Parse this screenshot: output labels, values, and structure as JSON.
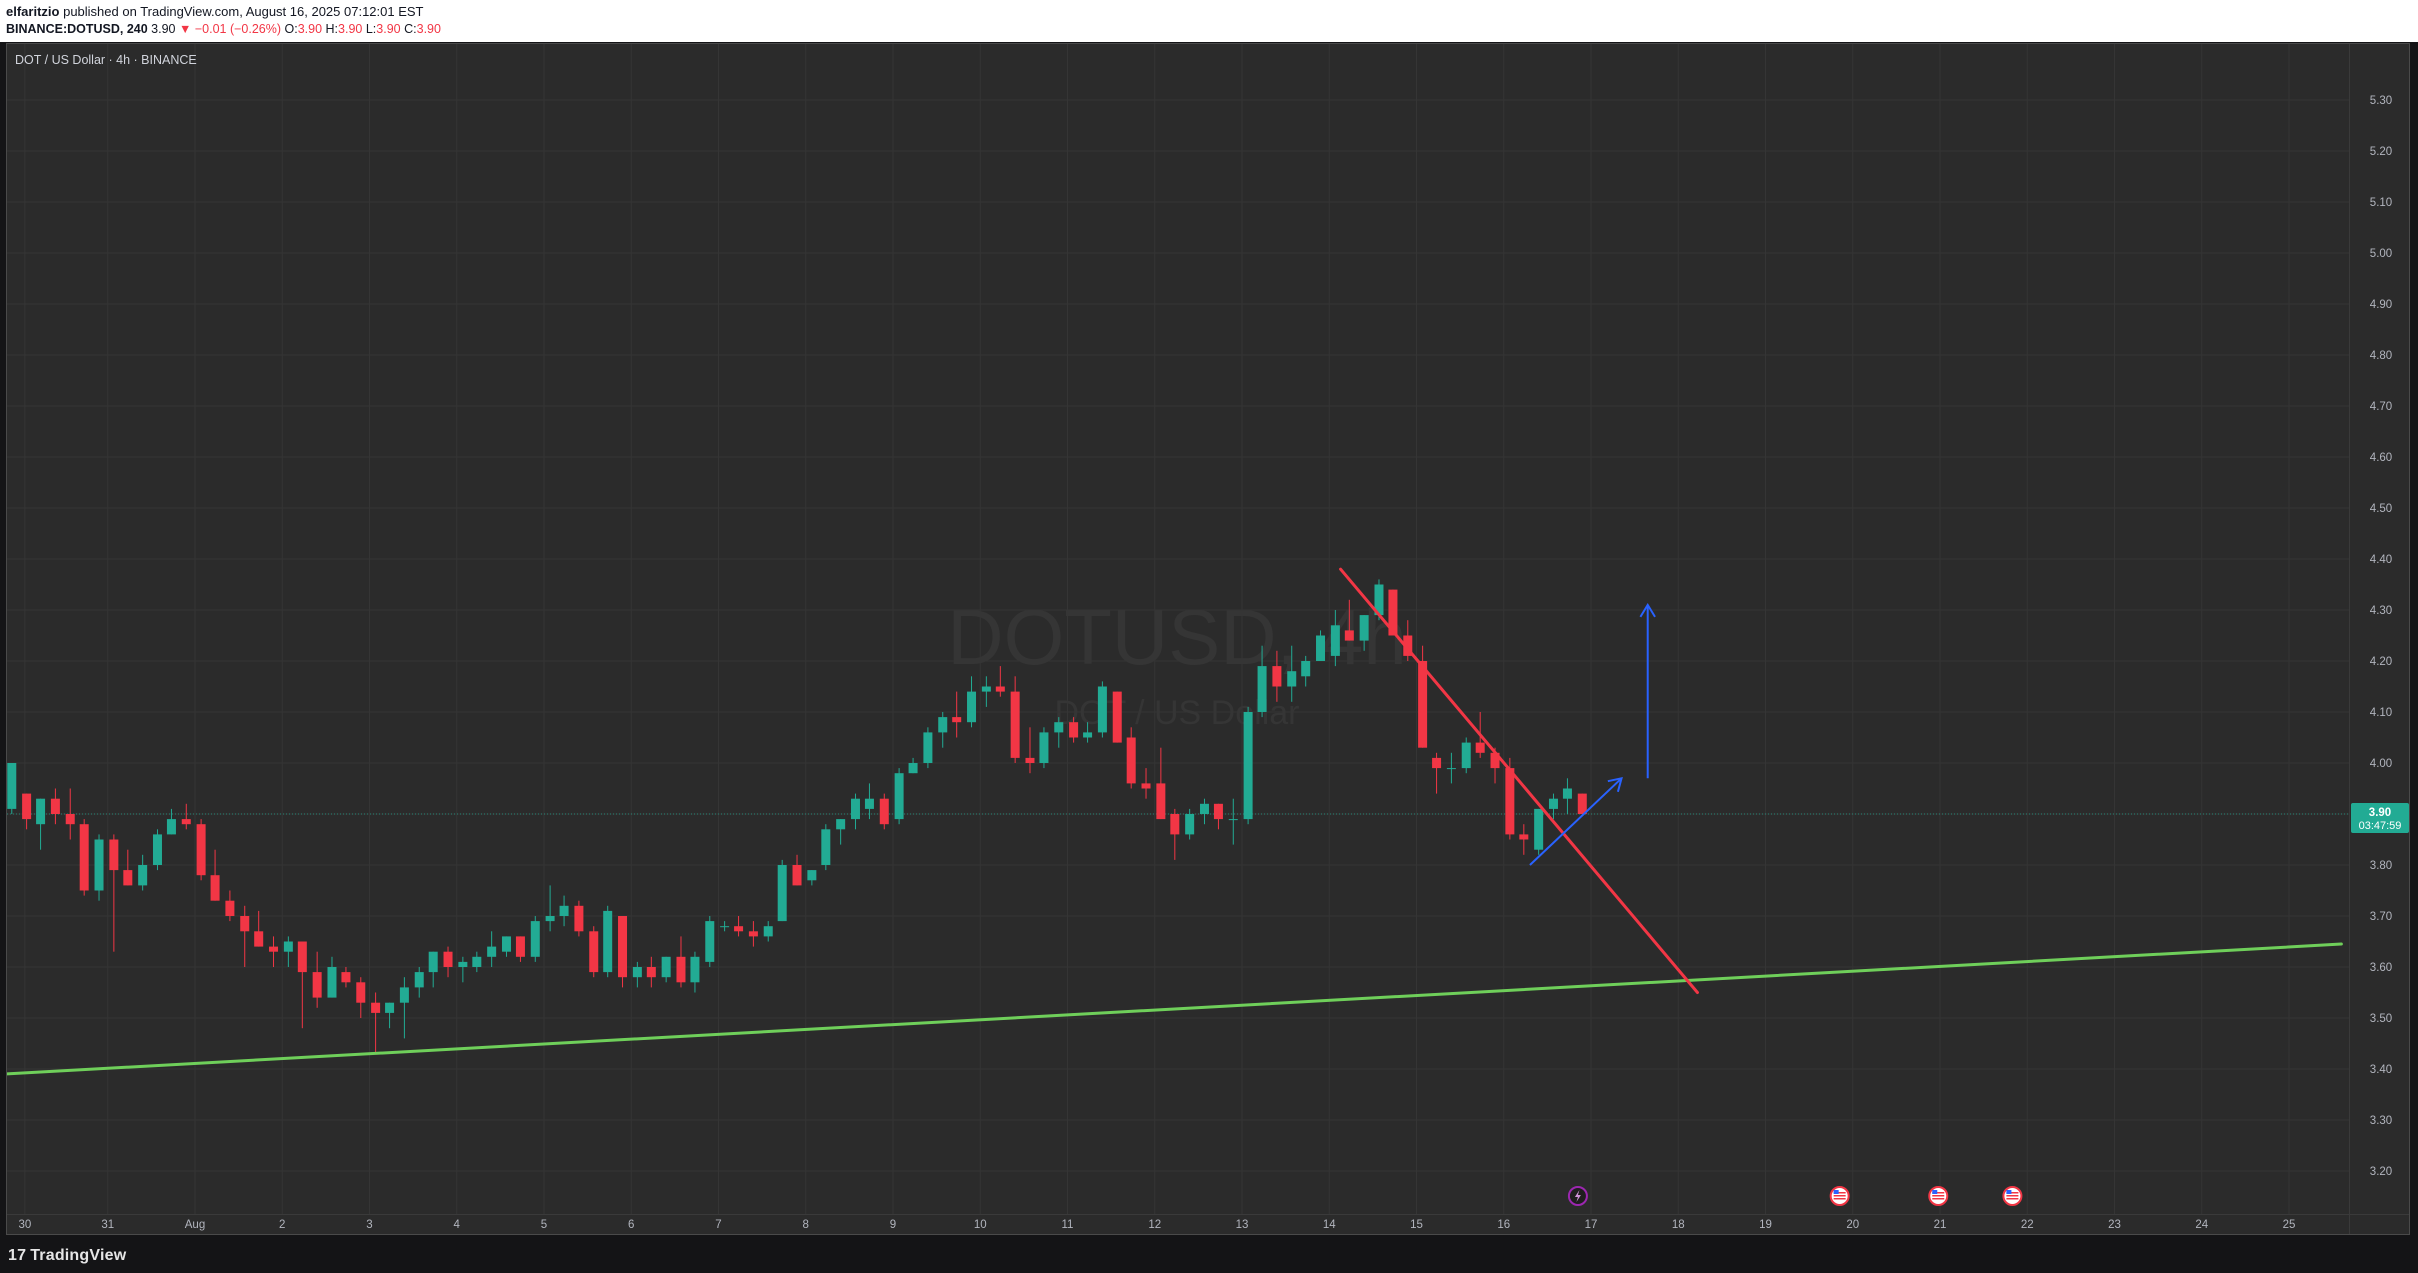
{
  "header": {
    "author": "elfaritzio",
    "published_text": "published on TradingView.com, August 16, 2025 07:12:01 EST",
    "symbol": "BINANCE:DOTUSD, 240",
    "price": "3.90",
    "change": "▼ −0.01 (−0.26%)",
    "o_label": "O:",
    "o_value": "3.90",
    "h_label": "H:",
    "h_value": "3.90",
    "l_label": "L:",
    "l_value": "3.90",
    "c_label": "C:",
    "c_value": "3.90"
  },
  "footer": {
    "logo_mark": "17",
    "logo_text": "TradingView"
  },
  "colors": {
    "background": "#2b2b2b",
    "grid": "#353535",
    "up": "#22ab94",
    "down": "#f23645",
    "support_line": "#6fcf5a",
    "trend_line": "#f23645",
    "arrow": "#2962ff",
    "text": "#b2b5be"
  },
  "chart_data": {
    "type": "candlestick",
    "title": "DOT / US Dollar · 4h · BINANCE",
    "watermark_symbol": "DOTUSD, 4h",
    "watermark_name": "DOT / US Dollar",
    "ylim": [
      3.15,
      5.35
    ],
    "y_ticks": [
      "3.20",
      "3.30",
      "3.40",
      "3.50",
      "3.60",
      "3.70",
      "3.80",
      "3.90",
      "4.00",
      "4.10",
      "4.20",
      "4.30",
      "4.40",
      "4.50",
      "4.60",
      "4.70",
      "4.80",
      "4.90",
      "5.00",
      "5.10",
      "5.20",
      "5.30"
    ],
    "x_ticks": [
      {
        "label": "30",
        "day": -1.95
      },
      {
        "label": "31",
        "day": -1
      },
      {
        "label": "Aug",
        "day": 0
      },
      {
        "label": "2",
        "day": 1
      },
      {
        "label": "3",
        "day": 2
      },
      {
        "label": "4",
        "day": 3
      },
      {
        "label": "5",
        "day": 4
      },
      {
        "label": "6",
        "day": 5
      },
      {
        "label": "7",
        "day": 6
      },
      {
        "label": "8",
        "day": 7
      },
      {
        "label": "9",
        "day": 8
      },
      {
        "label": "10",
        "day": 9
      },
      {
        "label": "11",
        "day": 10
      },
      {
        "label": "12",
        "day": 11
      },
      {
        "label": "13",
        "day": 12
      },
      {
        "label": "14",
        "day": 13
      },
      {
        "label": "15",
        "day": 14
      },
      {
        "label": "16",
        "day": 15
      },
      {
        "label": "17",
        "day": 16
      },
      {
        "label": "18",
        "day": 17
      },
      {
        "label": "19",
        "day": 18
      },
      {
        "label": "20",
        "day": 19
      },
      {
        "label": "21",
        "day": 20
      },
      {
        "label": "22",
        "day": 21
      },
      {
        "label": "23",
        "day": 22
      },
      {
        "label": "24",
        "day": 23
      },
      {
        "label": "25",
        "day": 24
      }
    ],
    "candles": [
      [
        -2.1,
        3.91,
        3.99,
        3.9,
        4.0
      ],
      [
        -1.93,
        3.94,
        3.94,
        3.87,
        3.89
      ],
      [
        -1.77,
        3.88,
        3.93,
        3.83,
        3.93
      ],
      [
        -1.6,
        3.93,
        3.95,
        3.88,
        3.9
      ],
      [
        -1.43,
        3.9,
        3.95,
        3.85,
        3.88
      ],
      [
        -1.27,
        3.88,
        3.89,
        3.74,
        3.75
      ],
      [
        -1.1,
        3.75,
        3.86,
        3.73,
        3.85
      ],
      [
        -0.93,
        3.85,
        3.86,
        3.63,
        3.79
      ],
      [
        -0.77,
        3.79,
        3.83,
        3.76,
        3.76
      ],
      [
        -0.6,
        3.76,
        3.82,
        3.75,
        3.8
      ],
      [
        -0.43,
        3.8,
        3.87,
        3.79,
        3.86
      ],
      [
        -0.27,
        3.86,
        3.91,
        3.86,
        3.89
      ],
      [
        -0.1,
        3.89,
        3.92,
        3.87,
        3.88
      ],
      [
        0.07,
        3.88,
        3.89,
        3.77,
        3.78
      ],
      [
        0.23,
        3.78,
        3.83,
        3.73,
        3.73
      ],
      [
        0.4,
        3.73,
        3.75,
        3.69,
        3.7
      ],
      [
        0.57,
        3.7,
        3.72,
        3.6,
        3.67
      ],
      [
        0.73,
        3.67,
        3.71,
        3.64,
        3.64
      ],
      [
        0.9,
        3.64,
        3.66,
        3.6,
        3.63
      ],
      [
        1.07,
        3.63,
        3.66,
        3.6,
        3.65
      ],
      [
        1.23,
        3.65,
        3.65,
        3.48,
        3.59
      ],
      [
        1.4,
        3.59,
        3.63,
        3.52,
        3.54
      ],
      [
        1.57,
        3.54,
        3.62,
        3.54,
        3.6
      ],
      [
        1.73,
        3.59,
        3.6,
        3.56,
        3.57
      ],
      [
        1.9,
        3.57,
        3.58,
        3.5,
        3.53
      ],
      [
        2.07,
        3.53,
        3.55,
        3.43,
        3.51
      ],
      [
        2.23,
        3.51,
        3.53,
        3.48,
        3.53
      ],
      [
        2.4,
        3.53,
        3.58,
        3.46,
        3.56
      ],
      [
        2.57,
        3.56,
        3.6,
        3.54,
        3.59
      ],
      [
        2.73,
        3.59,
        3.63,
        3.56,
        3.63
      ],
      [
        2.9,
        3.63,
        3.64,
        3.58,
        3.6
      ],
      [
        3.07,
        3.6,
        3.62,
        3.57,
        3.61
      ],
      [
        3.23,
        3.6,
        3.63,
        3.59,
        3.62
      ],
      [
        3.4,
        3.62,
        3.67,
        3.6,
        3.64
      ],
      [
        3.57,
        3.63,
        3.66,
        3.62,
        3.66
      ],
      [
        3.73,
        3.66,
        3.66,
        3.61,
        3.62
      ],
      [
        3.9,
        3.62,
        3.7,
        3.61,
        3.69
      ],
      [
        4.07,
        3.69,
        3.76,
        3.67,
        3.7
      ],
      [
        4.23,
        3.7,
        3.74,
        3.68,
        3.72
      ],
      [
        4.4,
        3.72,
        3.73,
        3.66,
        3.67
      ],
      [
        4.57,
        3.67,
        3.68,
        3.58,
        3.59
      ],
      [
        4.73,
        3.59,
        3.72,
        3.58,
        3.71
      ],
      [
        4.9,
        3.7,
        3.7,
        3.56,
        3.58
      ],
      [
        5.07,
        3.58,
        3.61,
        3.56,
        3.6
      ],
      [
        5.23,
        3.6,
        3.62,
        3.56,
        3.58
      ],
      [
        5.4,
        3.58,
        3.62,
        3.57,
        3.62
      ],
      [
        5.57,
        3.62,
        3.66,
        3.56,
        3.57
      ],
      [
        5.73,
        3.57,
        3.63,
        3.55,
        3.62
      ],
      [
        5.9,
        3.61,
        3.7,
        3.6,
        3.69
      ],
      [
        6.07,
        3.68,
        3.69,
        3.67,
        3.68
      ],
      [
        6.23,
        3.68,
        3.7,
        3.66,
        3.67
      ],
      [
        6.4,
        3.67,
        3.69,
        3.64,
        3.66
      ],
      [
        6.57,
        3.66,
        3.69,
        3.65,
        3.68
      ],
      [
        6.73,
        3.69,
        3.81,
        3.69,
        3.8
      ],
      [
        6.9,
        3.8,
        3.82,
        3.76,
        3.76
      ],
      [
        7.07,
        3.77,
        3.79,
        3.76,
        3.79
      ],
      [
        7.23,
        3.8,
        3.88,
        3.79,
        3.87
      ],
      [
        7.4,
        3.87,
        3.89,
        3.84,
        3.89
      ],
      [
        7.57,
        3.89,
        3.94,
        3.87,
        3.93
      ],
      [
        7.73,
        3.91,
        3.96,
        3.89,
        3.93
      ],
      [
        7.9,
        3.93,
        3.94,
        3.87,
        3.88
      ],
      [
        8.07,
        3.89,
        3.99,
        3.88,
        3.98
      ],
      [
        8.23,
        3.98,
        4.01,
        3.98,
        4.0
      ],
      [
        8.4,
        4.0,
        4.07,
        3.99,
        4.06
      ],
      [
        8.57,
        4.06,
        4.1,
        4.03,
        4.09
      ],
      [
        8.73,
        4.09,
        4.14,
        4.05,
        4.08
      ],
      [
        8.9,
        4.08,
        4.17,
        4.07,
        4.14
      ],
      [
        9.07,
        4.14,
        4.17,
        4.11,
        4.15
      ],
      [
        9.23,
        4.15,
        4.19,
        4.13,
        4.14
      ],
      [
        9.4,
        4.14,
        4.17,
        4.0,
        4.01
      ],
      [
        9.57,
        4.01,
        4.07,
        3.98,
        4.0
      ],
      [
        9.73,
        4.0,
        4.07,
        3.99,
        4.06
      ],
      [
        9.9,
        4.06,
        4.09,
        4.03,
        4.08
      ],
      [
        10.07,
        4.08,
        4.09,
        4.04,
        4.05
      ],
      [
        10.23,
        4.05,
        4.08,
        4.04,
        4.06
      ],
      [
        10.4,
        4.06,
        4.16,
        4.05,
        4.15
      ],
      [
        10.57,
        4.14,
        4.14,
        4.04,
        4.04
      ],
      [
        10.73,
        4.05,
        4.07,
        3.95,
        3.96
      ],
      [
        10.9,
        3.96,
        3.99,
        3.93,
        3.95
      ],
      [
        11.07,
        3.96,
        4.03,
        3.89,
        3.89
      ],
      [
        11.23,
        3.9,
        3.91,
        3.81,
        3.86
      ],
      [
        11.4,
        3.86,
        3.91,
        3.85,
        3.9
      ],
      [
        11.57,
        3.9,
        3.93,
        3.88,
        3.92
      ],
      [
        11.73,
        3.92,
        3.92,
        3.87,
        3.89
      ],
      [
        11.9,
        3.89,
        3.93,
        3.84,
        3.89
      ],
      [
        12.07,
        3.89,
        4.11,
        3.88,
        4.1
      ],
      [
        12.23,
        4.1,
        4.23,
        4.09,
        4.19
      ],
      [
        12.4,
        4.19,
        4.22,
        4.12,
        4.15
      ],
      [
        12.57,
        4.15,
        4.23,
        4.12,
        4.18
      ],
      [
        12.73,
        4.17,
        4.21,
        4.15,
        4.2
      ],
      [
        12.9,
        4.2,
        4.26,
        4.2,
        4.25
      ],
      [
        13.07,
        4.21,
        4.3,
        4.19,
        4.27
      ],
      [
        13.23,
        4.26,
        4.32,
        4.24,
        4.24
      ],
      [
        13.4,
        4.24,
        4.29,
        4.22,
        4.29
      ],
      [
        13.57,
        4.29,
        4.36,
        4.28,
        4.35
      ],
      [
        13.73,
        4.34,
        4.34,
        4.25,
        4.25
      ],
      [
        13.9,
        4.25,
        4.28,
        4.2,
        4.21
      ],
      [
        14.07,
        4.2,
        4.23,
        4.03,
        4.03
      ],
      [
        14.23,
        4.01,
        4.02,
        3.94,
        3.99
      ],
      [
        14.4,
        3.99,
        4.02,
        3.96,
        3.99
      ],
      [
        14.57,
        3.99,
        4.05,
        3.98,
        4.04
      ],
      [
        14.73,
        4.04,
        4.1,
        4.01,
        4.02
      ],
      [
        14.9,
        4.02,
        4.03,
        3.96,
        3.99
      ],
      [
        15.07,
        3.99,
        4.01,
        3.85,
        3.86
      ],
      [
        15.23,
        3.86,
        3.88,
        3.82,
        3.85
      ],
      [
        15.4,
        3.83,
        3.91,
        3.82,
        3.91
      ],
      [
        15.57,
        3.91,
        3.94,
        3.89,
        3.93
      ],
      [
        15.73,
        3.93,
        3.97,
        3.9,
        3.95
      ],
      [
        15.9,
        3.94,
        3.94,
        3.9,
        3.9
      ]
    ],
    "drawings": {
      "support_line": {
        "from": [
          -2.2,
          3.39
        ],
        "to": [
          24.6,
          3.645
        ]
      },
      "downtrend_line": {
        "from": [
          13.13,
          4.38
        ],
        "to": [
          17.22,
          3.55
        ]
      },
      "short_arrow": {
        "from": [
          15.3,
          3.8
        ],
        "to": [
          16.35,
          3.97
        ]
      },
      "vertical_arrow": {
        "from": [
          16.65,
          3.97
        ],
        "to": [
          16.65,
          4.31
        ]
      }
    },
    "current_price": {
      "value": "3.90",
      "countdown": "03:47:59"
    },
    "event_markers": [
      {
        "day": 15.85,
        "icon": "lightning-icon"
      },
      {
        "day": 18.85,
        "icon": "us-flag-icon"
      },
      {
        "day": 19.98,
        "icon": "us-flag-icon"
      },
      {
        "day": 20.83,
        "icon": "us-flag-icon"
      }
    ]
  }
}
